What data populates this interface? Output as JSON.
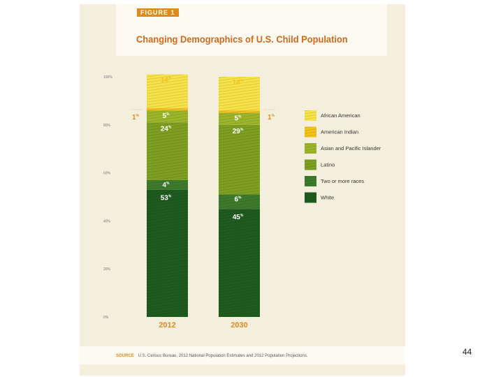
{
  "figure_label": "FIGURE 1",
  "source_key": "SOURCE",
  "source_text": "U.S. Census Bureau, 2012 National Population Estimates and 2012 Population Projections.",
  "page_number": "44",
  "chart_data": {
    "type": "bar",
    "stacked": true,
    "title": "Changing Demographics of U.S. Child Population",
    "categories": [
      "2012",
      "2030"
    ],
    "ylim": [
      0,
      100
    ],
    "yticks": [
      0,
      20,
      40,
      60,
      80,
      100
    ],
    "ytick_labels": [
      "0%",
      "20%",
      "40%",
      "60%",
      "80%",
      "100%"
    ],
    "series": [
      {
        "name": "White",
        "values": [
          53,
          45
        ],
        "labels": [
          "53",
          "45"
        ],
        "color": "#1f5a1f"
      },
      {
        "name": "Two or more races",
        "values": [
          4,
          6
        ],
        "labels": [
          "4",
          "6"
        ],
        "color": "#3d7a2c"
      },
      {
        "name": "Latino",
        "values": [
          24,
          29
        ],
        "labels": [
          "24",
          "29"
        ],
        "color": "#7e9f22"
      },
      {
        "name": "Asian and Pacific Islander",
        "values": [
          5,
          5
        ],
        "labels": [
          "5",
          "5"
        ],
        "color": "#9cb52a"
      },
      {
        "name": "American Indian",
        "values": [
          1,
          1
        ],
        "labels": [
          "1",
          "1"
        ],
        "color": "#f2c21a"
      },
      {
        "name": "African American",
        "values": [
          14,
          14
        ],
        "labels": [
          "14",
          "14"
        ],
        "color": "#f7e24a"
      }
    ],
    "legend_order": [
      "African American",
      "American Indian",
      "Asian and Pacific Islander",
      "Latino",
      "Two or more races",
      "White"
    ],
    "percent_symbol": "%"
  }
}
